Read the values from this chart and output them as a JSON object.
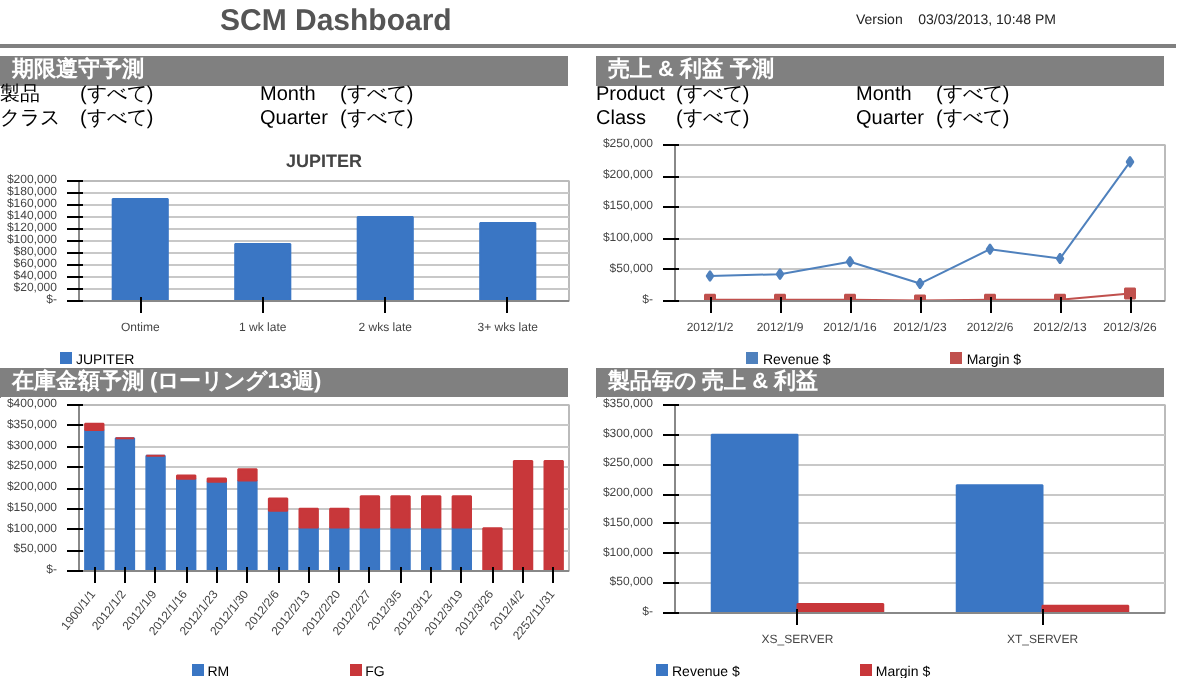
{
  "chart_data": [
    {
      "type": "other",
      "title": "SCM Dashboard",
      "annotations": [
        "Version",
        "03/03/2013, 10:48 PM"
      ]
    },
    {
      "type": "bar",
      "title": "期限遵守予測",
      "subtitle": "JUPITER",
      "annotations": [
        "製品",
        "(すべて)",
        "Month",
        "(すべて)",
        "クラス",
        "(すべて)",
        "Quarter",
        "(すべて)"
      ],
      "categories": [
        "Ontime",
        "1 wk late",
        "2 wks late",
        "3+ wks late"
      ],
      "series": [
        {
          "name": "JUPITER",
          "color": "#3a76c4",
          "values": [
            170000,
            95000,
            140000,
            130000
          ]
        }
      ],
      "ylim": [
        0,
        200000
      ],
      "yticks": [
        {
          "value": 0,
          "label": "$-"
        },
        {
          "value": 20000,
          "label": "$20,000"
        },
        {
          "value": 40000,
          "label": "$40,000"
        },
        {
          "value": 60000,
          "label": "$60,000"
        },
        {
          "value": 80000,
          "label": "$80,000"
        },
        {
          "value": 100000,
          "label": "$100,000"
        },
        {
          "value": 120000,
          "label": "$120,000"
        },
        {
          "value": 140000,
          "label": "$140,000"
        },
        {
          "value": 160000,
          "label": "$160,000"
        },
        {
          "value": 180000,
          "label": "$180,000"
        },
        {
          "value": 200000,
          "label": "$200,000"
        }
      ],
      "grid": "y",
      "legend": "bottom left"
    },
    {
      "type": "line",
      "title": "売上 & 利益 予測",
      "annotations": [
        "Product",
        "(すべて)",
        "Month",
        "(すべて)",
        "Class",
        "(すべて)",
        "Quarter",
        "(すべて)"
      ],
      "categories": [
        "2012/1/2",
        "2012/1/9",
        "2012/1/16",
        "2012/1/23",
        "2012/2/6",
        "2012/2/13",
        "2012/3/26"
      ],
      "series": [
        {
          "name": "Revenue $",
          "color": "#4f81bd",
          "marker": "diamond",
          "values": [
            40000,
            43000,
            63000,
            28000,
            83000,
            68000,
            223000
          ]
        },
        {
          "name": "Margin $",
          "color": "#c0504d",
          "marker": "square",
          "values": [
            2000,
            2000,
            2000,
            1000,
            2000,
            2000,
            12000
          ]
        }
      ],
      "ylim": [
        0,
        250000
      ],
      "yticks": [
        {
          "value": 0,
          "label": "$-"
        },
        {
          "value": 50000,
          "label": "$50,000"
        },
        {
          "value": 100000,
          "label": "$100,000"
        },
        {
          "value": 150000,
          "label": "$150,000"
        },
        {
          "value": 200000,
          "label": "$200,000"
        },
        {
          "value": 250000,
          "label": "$250,000"
        }
      ],
      "grid": "y",
      "legend": "bottom"
    },
    {
      "type": "bar",
      "title": "在庫金額予測 (ローリング13週)",
      "stacked": true,
      "categories": [
        "1900/1/1",
        "2012/1/2",
        "2012/1/9",
        "2012/1/16",
        "2012/1/23",
        "2012/1/30",
        "2012/2/6",
        "2012/2/13",
        "2012/2/20",
        "2012/2/27",
        "2012/3/5",
        "2012/3/12",
        "2012/3/19",
        "2012/3/26",
        "2012/4/2",
        "2252/11/31"
      ],
      "series": [
        {
          "name": "RM",
          "color": "#3a76c4",
          "values": [
            340000,
            320000,
            278000,
            222000,
            215000,
            218000,
            145000,
            105000,
            105000,
            105000,
            105000,
            105000,
            105000,
            0,
            0,
            0
          ]
        },
        {
          "name": "FG",
          "color": "#c8373a",
          "values": [
            15000,
            0,
            0,
            8000,
            8000,
            27000,
            30000,
            45000,
            45000,
            75000,
            75000,
            75000,
            75000,
            103000,
            265000,
            265000
          ]
        }
      ],
      "ylim": [
        0,
        400000
      ],
      "yticks": [
        {
          "value": 0,
          "label": "$-"
        },
        {
          "value": 50000,
          "label": "$50,000"
        },
        {
          "value": 100000,
          "label": "$100,000"
        },
        {
          "value": 150000,
          "label": "$150,000"
        },
        {
          "value": 200000,
          "label": "$200,000"
        },
        {
          "value": 250000,
          "label": "$250,000"
        },
        {
          "value": 300000,
          "label": "$300,000"
        },
        {
          "value": 350000,
          "label": "$350,000"
        },
        {
          "value": 400000,
          "label": "$400,000"
        }
      ],
      "grid": "y",
      "legend": "bottom"
    },
    {
      "type": "bar",
      "title": "製品毎の 売上 & 利益",
      "categories": [
        "XS_SERVER",
        "XT_SERVER"
      ],
      "series": [
        {
          "name": "Revenue $",
          "color": "#3a76c4",
          "values": [
            300000,
            215000
          ]
        },
        {
          "name": "Margin $",
          "color": "#c8373a",
          "values": [
            15000,
            12000
          ]
        }
      ],
      "ylim": [
        0,
        350000
      ],
      "yticks": [
        {
          "value": 0,
          "label": "$-"
        },
        {
          "value": 50000,
          "label": "$50,000"
        },
        {
          "value": 100000,
          "label": "$100,000"
        },
        {
          "value": 150000,
          "label": "$150,000"
        },
        {
          "value": 200000,
          "label": "$200,000"
        },
        {
          "value": 250000,
          "label": "$250,000"
        },
        {
          "value": 300000,
          "label": "$300,000"
        },
        {
          "value": 350000,
          "label": "$350,000"
        }
      ],
      "grid": "y",
      "legend": "bottom left"
    }
  ]
}
